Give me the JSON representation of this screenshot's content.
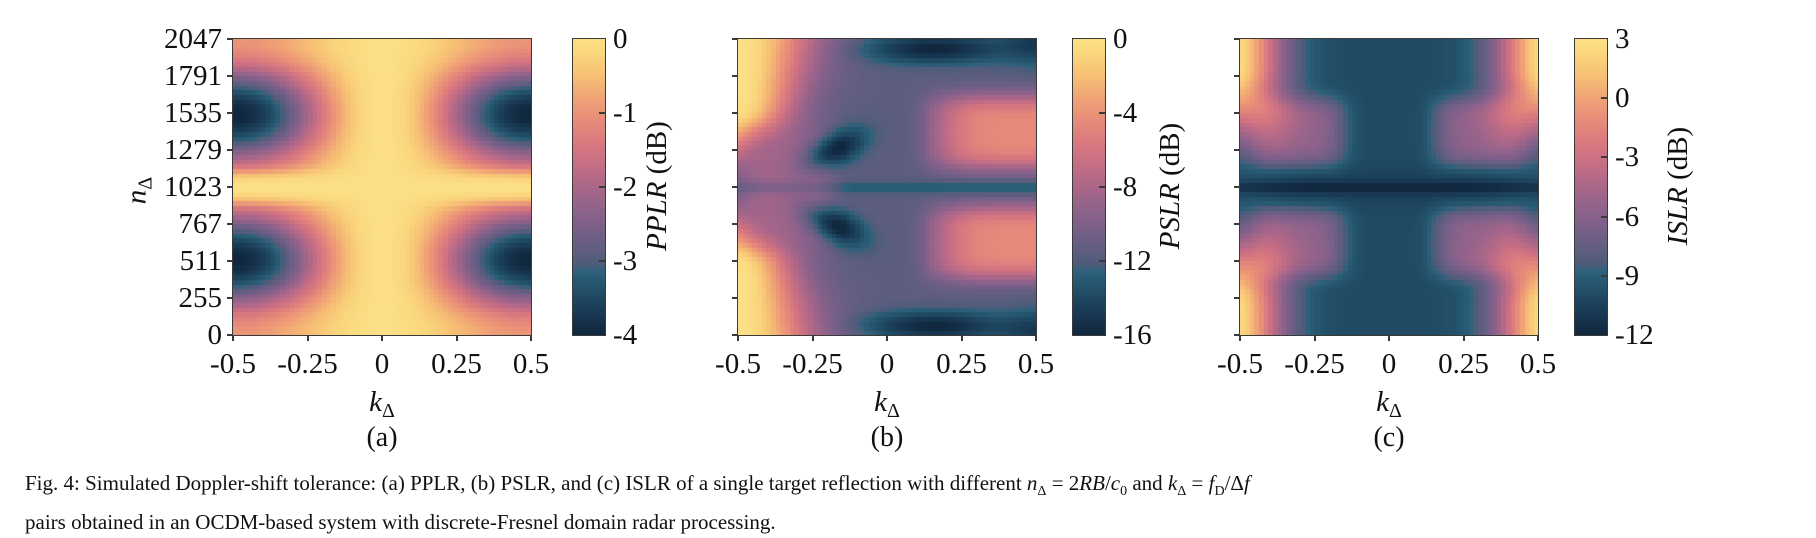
{
  "colormap": [
    [
      0.0,
      "#10263c"
    ],
    [
      0.06,
      "#173550"
    ],
    [
      0.13,
      "#1f4962"
    ],
    [
      0.19,
      "#285a73"
    ],
    [
      0.215,
      "#2e617b"
    ],
    [
      0.24,
      "#4e5c7a"
    ],
    [
      0.31,
      "#685e84"
    ],
    [
      0.4,
      "#87618a"
    ],
    [
      0.49,
      "#a76689"
    ],
    [
      0.57,
      "#c46d85"
    ],
    [
      0.65,
      "#d9797f"
    ],
    [
      0.72,
      "#e68a7a"
    ],
    [
      0.8,
      "#f0a375"
    ],
    [
      0.88,
      "#f7c175"
    ],
    [
      0.95,
      "#fad67d"
    ],
    [
      1.0,
      "#fcdf86"
    ]
  ],
  "chart_data": [
    {
      "id": "a",
      "type": "heatmap",
      "panel_label": "(a)",
      "x_axis": {
        "label": "k",
        "label_sub": "Δ",
        "ticks": [
          "-0.5",
          "-0.25",
          "0",
          "0.25",
          "0.5"
        ],
        "range": [
          -0.5,
          0.5
        ]
      },
      "y_axis": {
        "label": "n",
        "label_sub": "Δ",
        "ticks": [
          "2047",
          "1791",
          "1535",
          "1279",
          "1023",
          "767",
          "511",
          "255",
          "0"
        ],
        "range": [
          0,
          2047
        ],
        "show_tick_labels": true
      },
      "colorbar": {
        "title": "PPLR",
        "unit": "(dB)",
        "ticks": [
          "0",
          "-1",
          "-2",
          "-3",
          "-4"
        ],
        "vmin": -4,
        "vmax": 0
      },
      "pattern": "0 dB (yellow) along k=0 column and n=1023 row; minima near -4 dB (dark navy) at k=±0.5, n≈512 and n≈1536; ≈-1 dB at corners"
    },
    {
      "id": "b",
      "type": "heatmap",
      "panel_label": "(b)",
      "x_axis": {
        "label": "k",
        "label_sub": "Δ",
        "ticks": [
          "-0.5",
          "-0.25",
          "0",
          "0.25",
          "0.5"
        ],
        "range": [
          -0.5,
          0.5
        ]
      },
      "y_axis": {
        "label": "n",
        "label_sub": "Δ",
        "ticks": [
          "2047",
          "1791",
          "1535",
          "1279",
          "1023",
          "767",
          "511",
          "255",
          "0"
        ],
        "range": [
          0,
          2047
        ],
        "show_tick_labels": false
      },
      "colorbar": {
        "title": "PSLR",
        "unit": "(dB)",
        "ticks": [
          "0",
          "-4",
          "-8",
          "-12",
          "-16"
        ],
        "vmin": -16,
        "vmax": 0
      },
      "pattern": "≈0 dB (yellow) band at k=-0.5 except near n=1023; slate ellipse at k≈-0.35 around n=1023; ≈-16 dB kidney lobes at k≈-0.2 beside center row; ≈-4.5 dB pink lobes for k>0.1 above/below center; dark wisps near top/bottom edges for k>0; teal ≈-11 dB background"
    },
    {
      "id": "c",
      "type": "heatmap",
      "panel_label": "(c)",
      "x_axis": {
        "label": "k",
        "label_sub": "Δ",
        "ticks": [
          "-0.5",
          "-0.25",
          "0",
          "0.25",
          "0.5"
        ],
        "range": [
          -0.5,
          0.5
        ]
      },
      "y_axis": {
        "label": "n",
        "label_sub": "Δ",
        "ticks": [
          "2047",
          "1791",
          "1535",
          "1279",
          "1023",
          "767",
          "511",
          "255",
          "0"
        ],
        "range": [
          0,
          2047
        ],
        "show_tick_labels": false
      },
      "colorbar": {
        "title": "ISLR",
        "unit": "(dB)",
        "ticks": [
          "3",
          "0",
          "-3",
          "-6",
          "-9",
          "-12"
        ],
        "vmin": -12,
        "vmax": 3
      },
      "pattern": "≈+3 dB (yellow) at the four corners grading to pink toward center; teal ≈-10 dB cross along k=0 and n=1023; ≈-5 dB slate elliptical lobes at |k|≈0.3, n≈1023±370; symmetric in k"
    }
  ],
  "caption": {
    "segments": [
      {
        "t": "Fig. 4: Simulated Doppler-shift tolerance: (a) PPLR, (b) PSLR, and (c) ISLR of a single target reflection with different "
      },
      {
        "t": "n",
        "i": 1
      },
      {
        "t": "Δ",
        "s": 1
      },
      {
        "t": " = 2"
      },
      {
        "t": "RB",
        "i": 1
      },
      {
        "t": "/"
      },
      {
        "t": "c",
        "i": 1
      },
      {
        "t": "0",
        "s": 1
      },
      {
        "t": " and "
      },
      {
        "t": "k",
        "i": 1
      },
      {
        "t": "Δ",
        "s": 1
      },
      {
        "t": " = "
      },
      {
        "t": "f",
        "i": 1
      },
      {
        "t": "D",
        "s": 1
      },
      {
        "t": "/Δ"
      },
      {
        "t": "f",
        "i": 1
      },
      {
        "br": 1
      },
      {
        "t": "pairs obtained in an OCDM-based system with discrete-Fresnel domain radar processing."
      }
    ]
  }
}
